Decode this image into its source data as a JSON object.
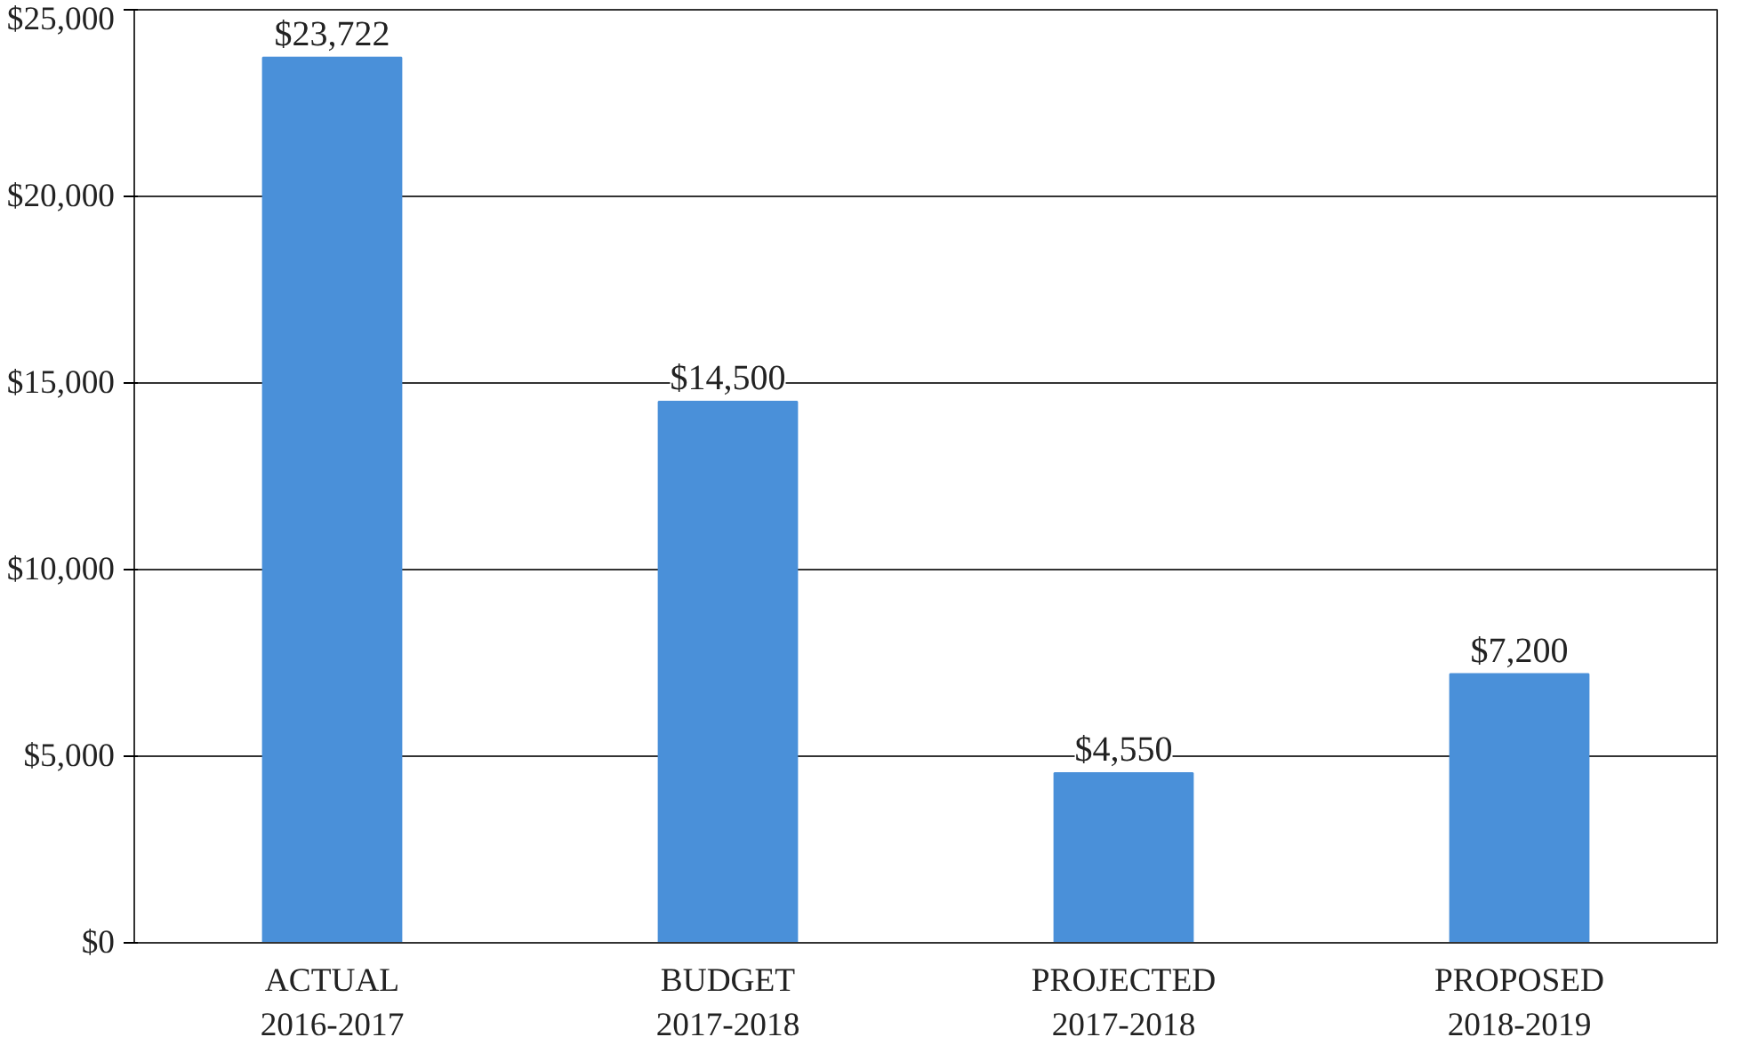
{
  "chart_data": {
    "type": "bar",
    "categories": [
      "ACTUAL\n2016-2017",
      "BUDGET\n2017-2018",
      "PROJECTED\n2017-2018",
      "PROPOSED\n2018-2019"
    ],
    "values": [
      23722,
      14500,
      4550,
      7200
    ],
    "value_labels": [
      "$23,722",
      "$14,500",
      "$4,550",
      "$7,200"
    ],
    "color": "#4a90d9",
    "ylim": [
      0,
      25000
    ],
    "yticks": [
      {
        "value": 0,
        "label": "$0"
      },
      {
        "value": 5000,
        "label": "$5,000"
      },
      {
        "value": 10000,
        "label": "$10,000"
      },
      {
        "value": 15000,
        "label": "$15,000"
      },
      {
        "value": 20000,
        "label": "$20,000"
      },
      {
        "value": 25000,
        "label": "$25,000"
      }
    ],
    "grid": "y"
  }
}
